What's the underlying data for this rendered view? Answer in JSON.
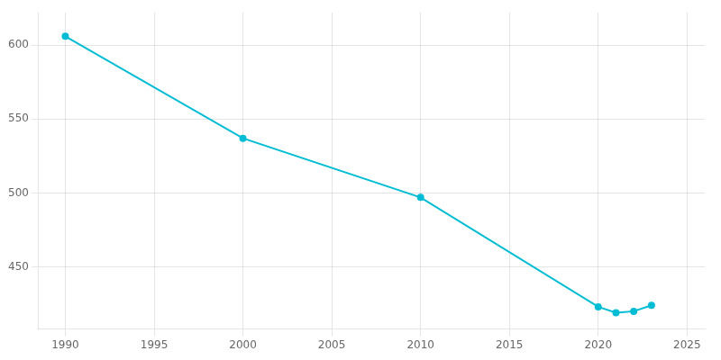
{
  "chart_data": {
    "type": "line",
    "x": [
      1990,
      2000,
      2010,
      2020,
      2021,
      2022,
      2023
    ],
    "values": [
      606,
      537,
      497,
      423,
      419,
      420,
      424
    ],
    "color": "#00bcd4",
    "marker": "circle",
    "xlim": [
      1988.5,
      2026
    ],
    "ylim": [
      408,
      622
    ],
    "xticks": [
      1990,
      1995,
      2000,
      2005,
      2010,
      2015,
      2020,
      2025
    ],
    "yticks": [
      450,
      500,
      550,
      600
    ],
    "grid": true
  }
}
